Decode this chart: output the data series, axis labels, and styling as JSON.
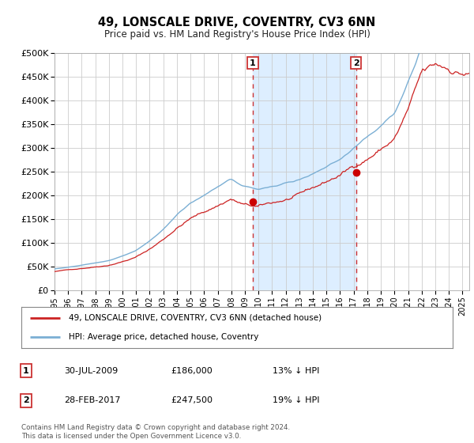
{
  "title": "49, LONSCALE DRIVE, COVENTRY, CV3 6NN",
  "subtitle": "Price paid vs. HM Land Registry's House Price Index (HPI)",
  "x_start": 1995.0,
  "x_end": 2025.5,
  "y_min": 0,
  "y_max": 500000,
  "y_ticks": [
    0,
    50000,
    100000,
    150000,
    200000,
    250000,
    300000,
    350000,
    400000,
    450000,
    500000
  ],
  "y_tick_labels": [
    "£0",
    "£50K",
    "£100K",
    "£150K",
    "£200K",
    "£250K",
    "£300K",
    "£350K",
    "£400K",
    "£450K",
    "£500K"
  ],
  "sale1_x": 2009.58,
  "sale1_y": 186000,
  "sale1_label": "1",
  "sale2_x": 2017.17,
  "sale2_y": 247500,
  "sale2_label": "2",
  "marker_color": "#cc0000",
  "vline_color": "#cc3333",
  "vline_style": "--",
  "hpi_line_color": "#7bafd4",
  "price_line_color": "#cc2222",
  "shaded_region_color": "#ddeeff",
  "box_border_color": "#cc3333",
  "legend_line1": "49, LONSCALE DRIVE, COVENTRY, CV3 6NN (detached house)",
  "legend_line2": "HPI: Average price, detached house, Coventry",
  "table_row1": [
    "1",
    "30-JUL-2009",
    "£186,000",
    "13% ↓ HPI"
  ],
  "table_row2": [
    "2",
    "28-FEB-2017",
    "£247,500",
    "19% ↓ HPI"
  ],
  "footer": "Contains HM Land Registry data © Crown copyright and database right 2024.\nThis data is licensed under the Open Government Licence v3.0.",
  "x_tick_years": [
    1995,
    1996,
    1997,
    1998,
    1999,
    2000,
    2001,
    2002,
    2003,
    2004,
    2005,
    2006,
    2007,
    2008,
    2009,
    2010,
    2011,
    2012,
    2013,
    2014,
    2015,
    2016,
    2017,
    2018,
    2019,
    2020,
    2021,
    2022,
    2023,
    2024,
    2025
  ],
  "bg_color": "#ffffff",
  "plot_bg_color": "#ffffff",
  "grid_color": "#cccccc"
}
